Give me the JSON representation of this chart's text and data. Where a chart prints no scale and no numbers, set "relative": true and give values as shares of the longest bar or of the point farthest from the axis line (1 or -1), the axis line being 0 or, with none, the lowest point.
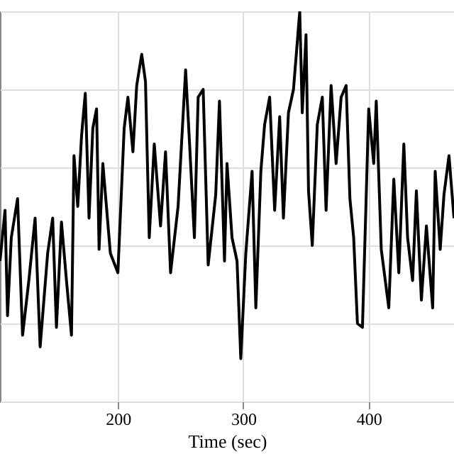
{
  "chart_data": {
    "type": "line",
    "xlabel": "Time (sec)",
    "relative": true,
    "grid": true,
    "xlim": [
      106,
      468
    ],
    "xticks": [
      200,
      300,
      400
    ],
    "series": [
      {
        "color": "#000000",
        "x": [
          106,
          110,
          112,
          115,
          120,
          124,
          129,
          134,
          138,
          144,
          148,
          151,
          155,
          159,
          163,
          165,
          168,
          171,
          174,
          177,
          180,
          183,
          185,
          188,
          194,
          200,
          205,
          208,
          212,
          215,
          219,
          222,
          225,
          229,
          234,
          238,
          242,
          248,
          254,
          257,
          261,
          264,
          268,
          272,
          278,
          281,
          285,
          287,
          291,
          295,
          298,
          302,
          307,
          310,
          314,
          317,
          321,
          325,
          329,
          332,
          336,
          340,
          345,
          347,
          350,
          352,
          355,
          359,
          363,
          366,
          370,
          374,
          378,
          382,
          385,
          388,
          391,
          395,
          400,
          404,
          406,
          410,
          416,
          420,
          424,
          428,
          431,
          435,
          438,
          442,
          446,
          451,
          453,
          457,
          460,
          464,
          468
        ],
        "values": [
          0.36,
          0.49,
          0.22,
          0.42,
          0.52,
          0.17,
          0.31,
          0.47,
          0.14,
          0.38,
          0.47,
          0.19,
          0.46,
          0.31,
          0.17,
          0.63,
          0.5,
          0.68,
          0.79,
          0.47,
          0.7,
          0.75,
          0.39,
          0.61,
          0.38,
          0.33,
          0.7,
          0.78,
          0.64,
          0.81,
          0.89,
          0.82,
          0.42,
          0.66,
          0.45,
          0.64,
          0.33,
          0.5,
          0.85,
          0.67,
          0.42,
          0.78,
          0.8,
          0.35,
          0.53,
          0.77,
          0.36,
          0.61,
          0.42,
          0.36,
          0.11,
          0.38,
          0.59,
          0.24,
          0.59,
          0.71,
          0.78,
          0.49,
          0.73,
          0.47,
          0.74,
          0.8,
          1.0,
          0.74,
          0.94,
          0.54,
          0.4,
          0.71,
          0.78,
          0.49,
          0.81,
          0.61,
          0.78,
          0.81,
          0.52,
          0.42,
          0.2,
          0.19,
          0.75,
          0.61,
          0.77,
          0.39,
          0.24,
          0.57,
          0.33,
          0.66,
          0.42,
          0.31,
          0.54,
          0.26,
          0.45,
          0.24,
          0.59,
          0.39,
          0.53,
          0.63,
          0.47
        ]
      }
    ]
  }
}
